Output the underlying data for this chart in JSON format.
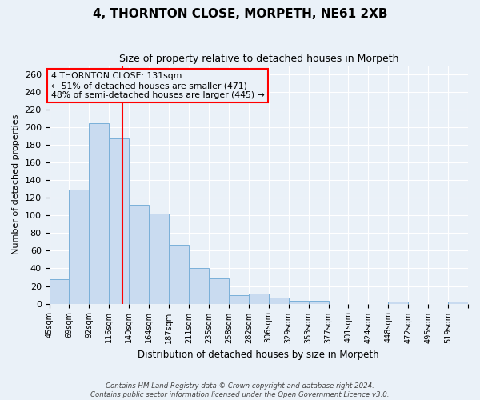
{
  "title1": "4, THORNTON CLOSE, MORPETH, NE61 2XB",
  "title2": "Size of property relative to detached houses in Morpeth",
  "xlabel": "Distribution of detached houses by size in Morpeth",
  "ylabel": "Number of detached properties",
  "bin_labels": [
    "45sqm",
    "69sqm",
    "92sqm",
    "116sqm",
    "140sqm",
    "164sqm",
    "187sqm",
    "211sqm",
    "235sqm",
    "258sqm",
    "282sqm",
    "306sqm",
    "329sqm",
    "353sqm",
    "377sqm",
    "401sqm",
    "424sqm",
    "448sqm",
    "472sqm",
    "495sqm",
    "519sqm"
  ],
  "bar_heights": [
    28,
    129,
    204,
    187,
    112,
    102,
    67,
    40,
    29,
    10,
    11,
    7,
    3,
    3,
    0,
    0,
    0,
    2,
    0,
    0,
    2
  ],
  "bar_color": "#c9dbf0",
  "bar_edge_color": "#7ab0d9",
  "ylim": [
    0,
    270
  ],
  "yticks": [
    0,
    20,
    40,
    60,
    80,
    100,
    120,
    140,
    160,
    180,
    200,
    220,
    240,
    260
  ],
  "property_line_bin": 3.65,
  "annotation_text": "4 THORNTON CLOSE: 131sqm\n← 51% of detached houses are smaller (471)\n48% of semi-detached houses are larger (445) →",
  "bg_color": "#eaf1f8",
  "grid_color": "#ffffff",
  "footer_line1": "Contains HM Land Registry data © Crown copyright and database right 2024.",
  "footer_line2": "Contains public sector information licensed under the Open Government Licence v3.0."
}
